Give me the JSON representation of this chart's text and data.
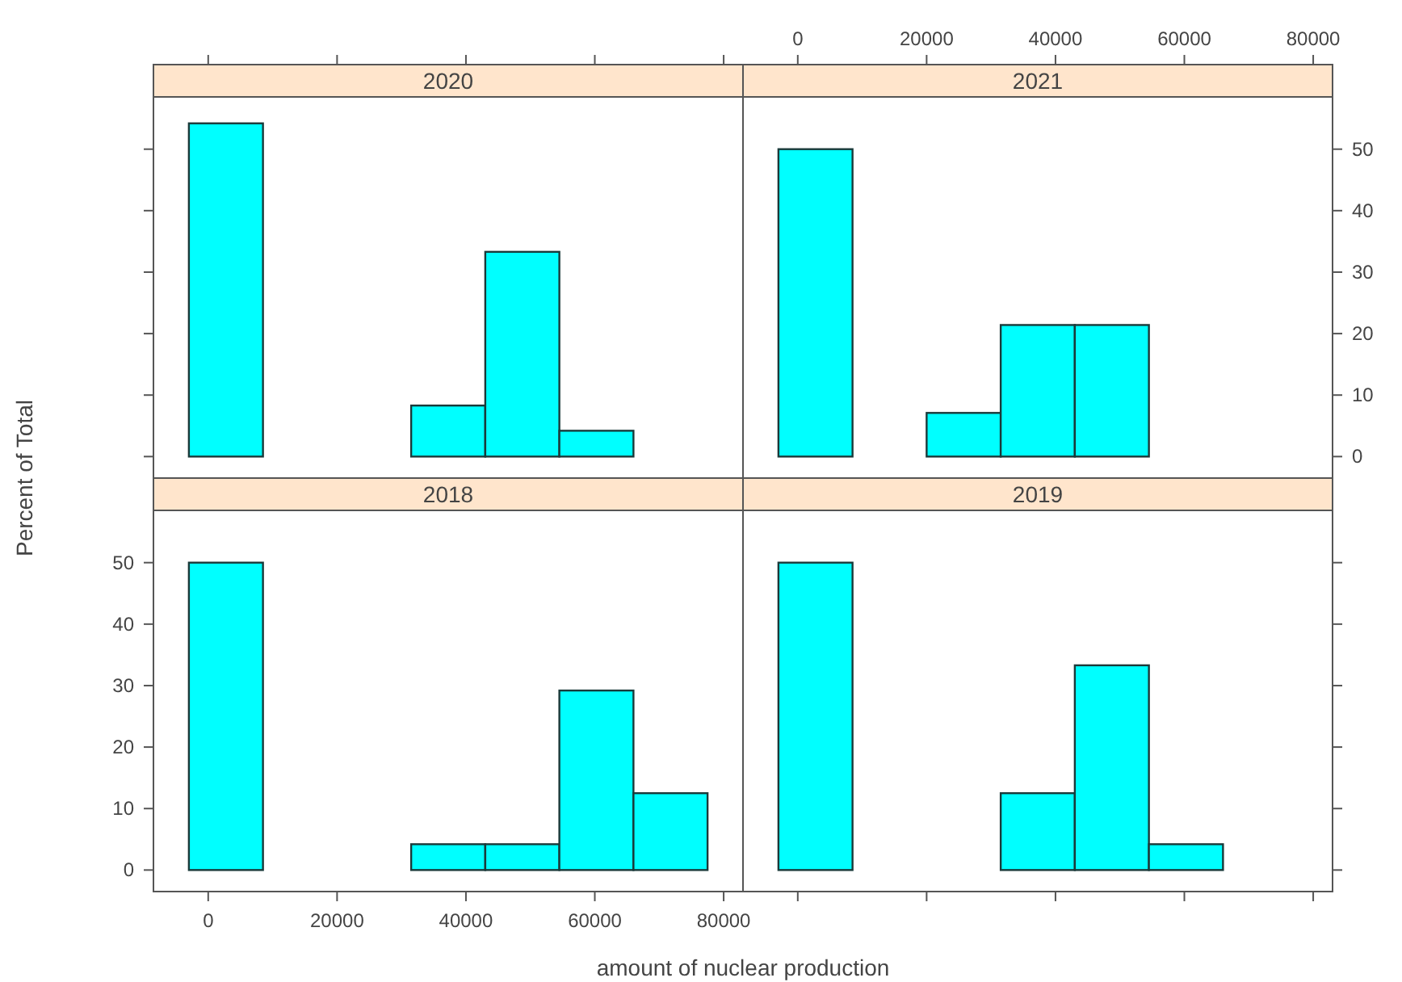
{
  "chart_data": [
    {
      "type": "histogram",
      "title": "2020",
      "bins": [
        -3000,
        8500,
        20000,
        31500,
        43000,
        54500,
        66000,
        77500
      ],
      "values": [
        54.2,
        0,
        0,
        8.3,
        33.3,
        4.2,
        0
      ],
      "color": "#00ffff",
      "xlim": [
        -8500,
        83000
      ],
      "ylim": [
        -3.5,
        58.5
      ],
      "xticks": [
        0,
        20000,
        40000,
        60000,
        80000
      ],
      "yticks": [
        0,
        10,
        20,
        30,
        40,
        50
      ],
      "tick_labels": false
    },
    {
      "type": "histogram",
      "title": "2021",
      "bins": [
        -3000,
        8500,
        20000,
        31500,
        43000,
        54500,
        66000,
        77500
      ],
      "values": [
        50,
        0,
        7.1,
        21.4,
        21.4,
        0,
        0
      ],
      "color": "#00ffff",
      "xlim": [
        -8500,
        83000
      ],
      "ylim": [
        -3.5,
        58.5
      ],
      "xticks": [
        0,
        20000,
        40000,
        60000,
        80000
      ],
      "yticks": [
        0,
        10,
        20,
        30,
        40,
        50
      ]
    },
    {
      "type": "histogram",
      "title": "2018",
      "xlabel": "amount of nuclear production",
      "ylabel": "Percent of Total",
      "bins": [
        -3000,
        8500,
        20000,
        31500,
        43000,
        54500,
        66000,
        77500
      ],
      "values": [
        50,
        0,
        0,
        4.2,
        4.2,
        29.2,
        12.5
      ],
      "color": "#00ffff",
      "xlim": [
        -8500,
        83000
      ],
      "ylim": [
        -3.5,
        58.5
      ],
      "xticks": [
        0,
        20000,
        40000,
        60000,
        80000
      ],
      "yticks": [
        0,
        10,
        20,
        30,
        40,
        50
      ]
    },
    {
      "type": "histogram",
      "title": "2019",
      "bins": [
        -3000,
        8500,
        20000,
        31500,
        43000,
        54500,
        66000,
        77500
      ],
      "values": [
        50,
        0,
        0,
        12.5,
        33.3,
        4.2,
        0
      ],
      "color": "#00ffff",
      "xlim": [
        -8500,
        83000
      ],
      "ylim": [
        -3.5,
        58.5
      ],
      "xticks": [
        0,
        20000,
        40000,
        60000,
        80000
      ],
      "yticks": [
        0,
        10,
        20,
        30,
        40,
        50
      ],
      "tick_labels": false
    }
  ]
}
